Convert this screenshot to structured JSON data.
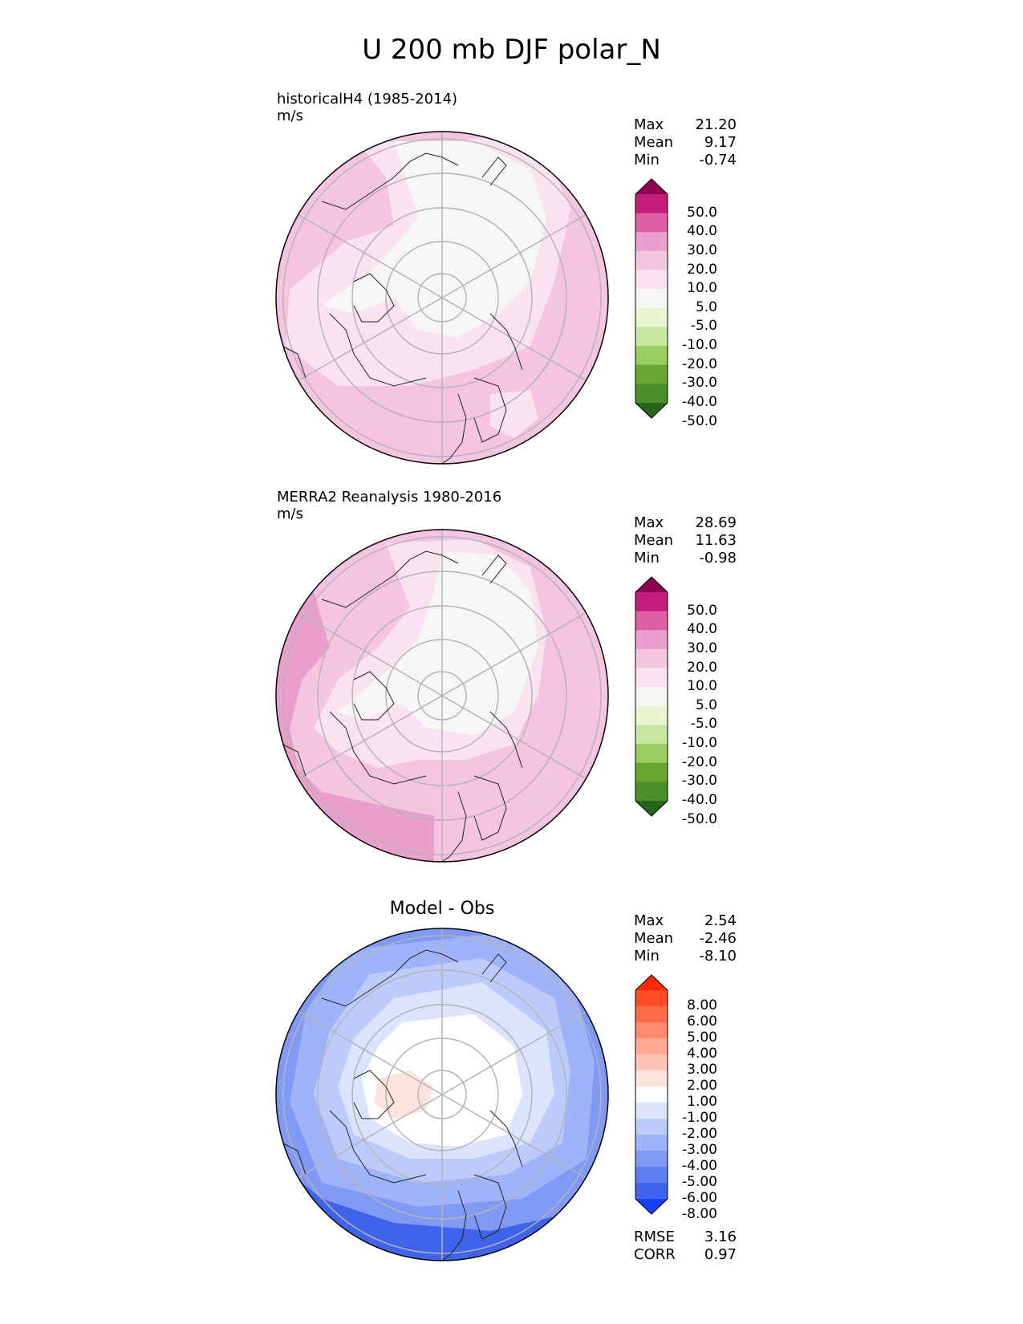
{
  "figure": {
    "title": "U 200 mb DJF polar_N"
  },
  "chart_data": [
    {
      "type": "heatmap",
      "projection": "north-polar-stereographic",
      "title": "historicalH4 (1985-2014)",
      "units": "m/s",
      "stats": {
        "max": "21.20",
        "mean": "9.17",
        "min": "-0.74"
      },
      "colorbar": {
        "ticks": [
          "50.0",
          "40.0",
          "30.0",
          "20.0",
          "10.0",
          "5.0",
          "-5.0",
          "-10.0",
          "-20.0",
          "-30.0",
          "-40.0",
          "-50.0"
        ],
        "colors": [
          "#8e0152",
          "#c51b7d",
          "#de5fa4",
          "#ea9ecb",
          "#f4c4e1",
          "#fbe2ef",
          "#f6f6f4",
          "#e8f5d0",
          "#c5e7a0",
          "#99cd62",
          "#6aa732",
          "#4a8f27",
          "#276419"
        ],
        "extend": "both"
      },
      "regions": [
        "mostly 10-20 m/s (light pink)",
        "5-10 m/s band around pole",
        "-5 to 5 m/s over central Arctic / Canada"
      ]
    },
    {
      "type": "heatmap",
      "projection": "north-polar-stereographic",
      "title": "MERRA2 Reanalysis 1980-2016",
      "units": "m/s",
      "stats": {
        "max": "28.69",
        "mean": "11.63",
        "min": "-0.98"
      },
      "colorbar": {
        "ticks": [
          "50.0",
          "40.0",
          "30.0",
          "20.0",
          "10.0",
          "5.0",
          "-5.0",
          "-10.0",
          "-20.0",
          "-30.0",
          "-40.0",
          "-50.0"
        ],
        "colors": [
          "#8e0152",
          "#c51b7d",
          "#de5fa4",
          "#ea9ecb",
          "#f4c4e1",
          "#fbe2ef",
          "#f6f6f4",
          "#e8f5d0",
          "#c5e7a0",
          "#99cd62",
          "#6aa732",
          "#4a8f27",
          "#276419"
        ],
        "extend": "both"
      },
      "regions": [
        "20-30 m/s jet over Pacific/East Asia",
        "10-20 m/s over most of domain",
        "-5 to 5 m/s over central Arctic"
      ]
    },
    {
      "type": "heatmap",
      "projection": "north-polar-stereographic",
      "title": "Model - Obs",
      "stats": {
        "max": "2.54",
        "mean": "-2.46",
        "min": "-8.10"
      },
      "metrics": {
        "rmse": "3.16",
        "corr": "0.97"
      },
      "colorbar": {
        "ticks": [
          "8.00",
          "6.00",
          "5.00",
          "4.00",
          "3.00",
          "2.00",
          "1.00",
          "-1.00",
          "-2.00",
          "-3.00",
          "-4.00",
          "-5.00",
          "-6.00",
          "-8.00"
        ],
        "colors": [
          "#ff2a00",
          "#ff4b26",
          "#ff6a4a",
          "#ff8a70",
          "#ffa898",
          "#ffc4b8",
          "#fde3dc",
          "#ffffff",
          "#dbe3fd",
          "#bccbfb",
          "#9eb3f9",
          "#7f99f5",
          "#5f7ff0",
          "#3f63ea",
          "#1a40ff"
        ],
        "extend": "both"
      },
      "regions": [
        "-1 to 1 m/s near pole",
        "1-2 m/s over Scandinavia",
        "-3 to -8 m/s over Pacific and Eurasia jet"
      ]
    }
  ],
  "labels": {
    "max": "Max",
    "mean": "Mean",
    "min": "Min",
    "rmse": "RMSE",
    "corr": "CORR"
  }
}
